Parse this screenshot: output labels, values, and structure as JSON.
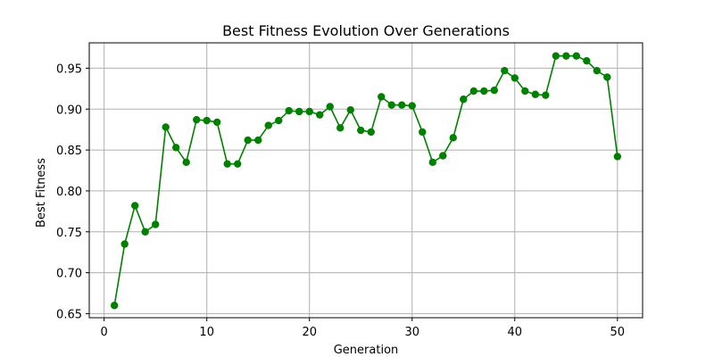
{
  "chart_data": {
    "type": "line",
    "title": "Best Fitness Evolution Over Generations",
    "xlabel": "Generation",
    "ylabel": "Best Fitness",
    "xlim": [
      -1.45,
      52.45
    ],
    "ylim": [
      0.645,
      0.981
    ],
    "xticks": [
      0,
      10,
      20,
      30,
      40,
      50
    ],
    "yticks": [
      0.65,
      0.7,
      0.75,
      0.8,
      0.85,
      0.9,
      0.95
    ],
    "grid": true,
    "legend": "none",
    "colors": {
      "line": "#008000",
      "grid": "#b0b0b0",
      "axes": "#000000"
    },
    "marker": "circle",
    "series": [
      {
        "x": [
          1,
          2,
          3,
          4,
          5,
          6,
          7,
          8,
          9,
          10,
          11,
          12,
          13,
          14,
          15,
          16,
          17,
          18,
          19,
          20,
          21,
          22,
          23,
          24,
          25,
          26,
          27,
          28,
          29,
          30,
          31,
          32,
          33,
          34,
          35,
          36,
          37,
          38,
          39,
          40,
          41,
          42,
          43,
          44,
          45,
          46,
          47,
          48,
          49,
          50
        ],
        "values": [
          0.66,
          0.735,
          0.782,
          0.75,
          0.759,
          0.878,
          0.853,
          0.835,
          0.887,
          0.886,
          0.884,
          0.833,
          0.833,
          0.862,
          0.862,
          0.88,
          0.886,
          0.898,
          0.897,
          0.897,
          0.893,
          0.903,
          0.877,
          0.899,
          0.874,
          0.872,
          0.915,
          0.905,
          0.905,
          0.904,
          0.872,
          0.835,
          0.843,
          0.865,
          0.912,
          0.922,
          0.922,
          0.923,
          0.947,
          0.938,
          0.922,
          0.918,
          0.917,
          0.965,
          0.965,
          0.965,
          0.959,
          0.947,
          0.939,
          0.842
        ]
      }
    ]
  }
}
